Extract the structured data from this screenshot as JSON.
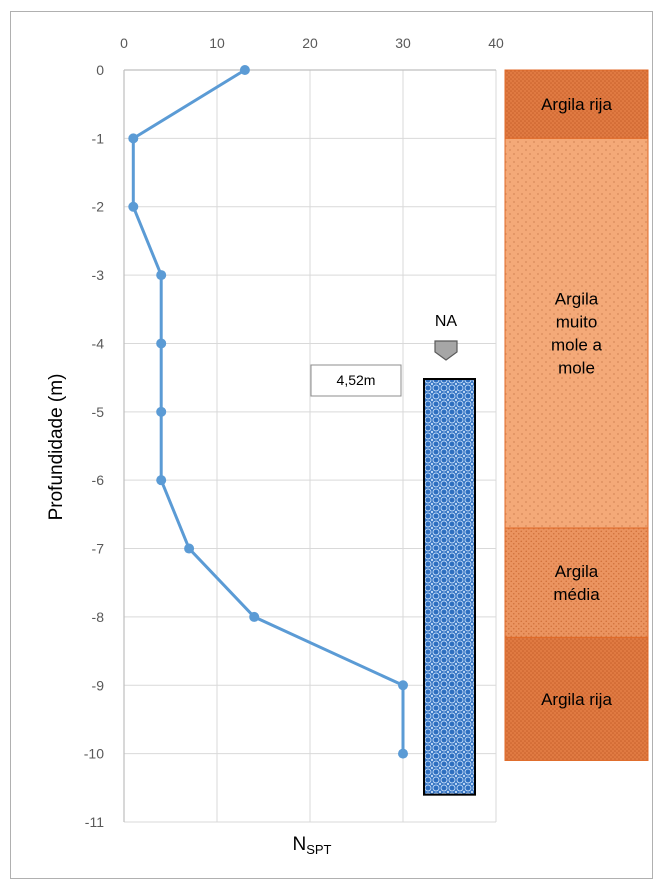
{
  "chart_data": {
    "type": "line",
    "title": "",
    "xlabel": "N",
    "xlabel_sub": "SPT",
    "ylabel": "Profundidade (m)",
    "xlim": [
      0,
      40
    ],
    "ylim": [
      -11,
      0
    ],
    "x_ticks": [
      0,
      10,
      20,
      30,
      40
    ],
    "y_ticks": [
      0,
      -1,
      -2,
      -3,
      -4,
      -5,
      -6,
      -7,
      -8,
      -9,
      -10,
      -11
    ],
    "grid": true,
    "series": [
      {
        "color": "#5b9bd5",
        "points": [
          {
            "x": 13,
            "y": 0
          },
          {
            "x": 1,
            "y": -1
          },
          {
            "x": 1,
            "y": -2
          },
          {
            "x": 4,
            "y": -3
          },
          {
            "x": 4,
            "y": -4
          },
          {
            "x": 4,
            "y": -5
          },
          {
            "x": 4,
            "y": -6
          },
          {
            "x": 7,
            "y": -7
          },
          {
            "x": 14,
            "y": -8
          },
          {
            "x": 30,
            "y": -9
          },
          {
            "x": 30,
            "y": -10
          }
        ]
      }
    ],
    "water_level": {
      "label": "NA",
      "depth_label": "4,52m",
      "top": -4.52,
      "bottom": -10.6
    },
    "strata": [
      {
        "name": "Argila rija",
        "label_lines": [
          "Argila rija"
        ],
        "top": 0,
        "bottom": -1,
        "color": "#e07a42"
      },
      {
        "name": "Argila muito mole a mole",
        "label_lines": [
          "Argila",
          "muito",
          "mole a",
          "mole"
        ],
        "top": -1,
        "bottom": -6.7,
        "color": "#f4a978"
      },
      {
        "name": "Argila média",
        "label_lines": [
          "Argila",
          "média"
        ],
        "top": -6.7,
        "bottom": -8.3,
        "color": "#eb9460"
      },
      {
        "name": "Argila rija",
        "label_lines": [
          "Argila rija"
        ],
        "top": -8.3,
        "bottom": -10.1,
        "color": "#e07a42"
      }
    ]
  }
}
